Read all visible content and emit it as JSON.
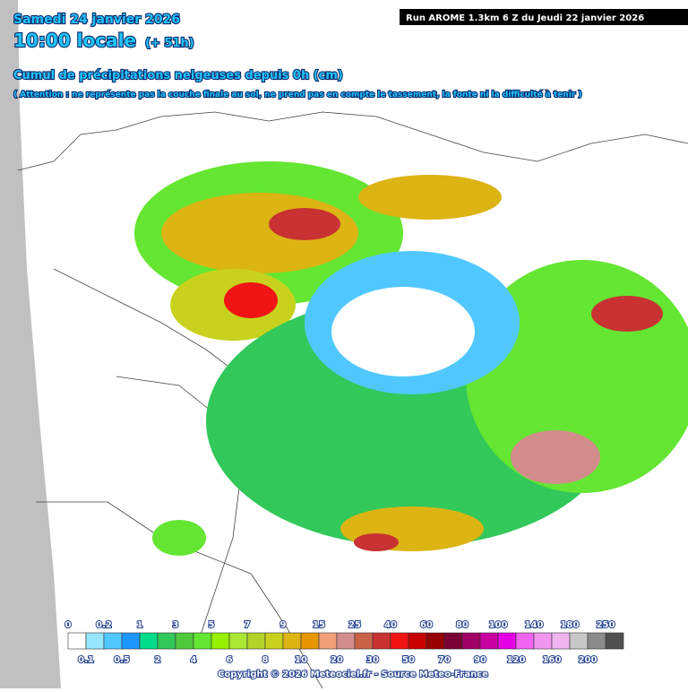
{
  "header": {
    "date": "Samedi 24 janvier 2026",
    "time": "10:00 locale",
    "lead": "(+ 51h)",
    "run": "Run AROME 1.3km 6 Z du Jeudi 22 janvier 2026",
    "title": "Cumul de précipitations neigeuses depuis 0h (cm)",
    "warning": "( Attention : ne représente pas la couche finale au sol, ne prend pas en compte le tassement, la fonte ni la difficulté à tenir )"
  },
  "legend": {
    "levels": [
      0,
      0.1,
      0.2,
      0.5,
      1,
      2,
      3,
      4,
      5,
      6,
      7,
      8,
      9,
      10,
      15,
      20,
      25,
      30,
      40,
      50,
      60,
      70,
      80,
      90,
      100,
      120,
      140,
      160,
      180,
      200,
      250
    ],
    "colors": [
      "#ffffff",
      "#96e6ff",
      "#50c8ff",
      "#1e96ff",
      "#00dc8c",
      "#32c85a",
      "#50c83c",
      "#64e632",
      "#96f000",
      "#aae632",
      "#b4d228",
      "#c8d21e",
      "#dcb414",
      "#e69600",
      "#f0a078",
      "#d28c8c",
      "#c86446",
      "#c83232",
      "#f01414",
      "#c80000",
      "#960000",
      "#780032",
      "#a00064",
      "#c800a0",
      "#e600e6",
      "#f064f0",
      "#f096f0",
      "#f0b4f0",
      "#c8c8c8",
      "#8c8c8c",
      "#505050"
    ]
  },
  "footer": {
    "copyright": "Copyright © 2026 Meteociel.fr - Source Meteo-France"
  }
}
